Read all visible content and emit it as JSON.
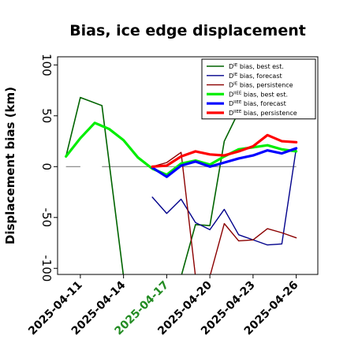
{
  "chart_data": {
    "type": "line",
    "title": "Bias, ice edge displacement",
    "ylabel": "Displacement bias (km)",
    "xlabel": "",
    "ylim": [
      -106,
      108
    ],
    "xlim": [
      "2025-04-09T10:00",
      "2025-04-27T12:00"
    ],
    "grid": false,
    "legend_position": "top-right",
    "yticks": [
      -100,
      -50,
      0,
      50,
      100
    ],
    "ytick_labels": [
      "-100",
      "-50",
      "0",
      "50",
      "100"
    ],
    "xticks": [
      {
        "date": "2025-04-11",
        "label": "2025-04-11",
        "color": "#000000"
      },
      {
        "date": "2025-04-14",
        "label": "2025-04-14",
        "color": "#000000"
      },
      {
        "date": "2025-04-17",
        "label": "2025-04-17",
        "color": "#228b22"
      },
      {
        "date": "2025-04-20",
        "label": "2025-04-20",
        "color": "#000000"
      },
      {
        "date": "2025-04-23",
        "label": "2025-04-23",
        "color": "#000000"
      },
      {
        "date": "2025-04-26",
        "label": "2025-04-26",
        "color": "#000000"
      }
    ],
    "zero_line": {
      "color": "#808080",
      "segments": [
        [
          {
            "x": "2025-04-10T00:00",
            "y": 0
          },
          {
            "x": "2025-04-11T00:00",
            "y": 0
          }
        ],
        [
          {
            "x": "2025-04-12T12:00",
            "y": 0
          },
          {
            "x": "2025-04-26T00:00",
            "y": 0
          }
        ]
      ]
    },
    "series": [
      {
        "name": "D^IE bias, best est.",
        "color": "#006400",
        "width": 1.6,
        "points": [
          {
            "x": "2025-04-10T00:00",
            "y": 10
          },
          {
            "x": "2025-04-11T00:00",
            "y": 68
          },
          {
            "x": "2025-04-12T12:00",
            "y": 60
          },
          {
            "x": "2025-04-14T00:00",
            "y": -108
          },
          null,
          {
            "x": "2025-04-18T00:00",
            "y": -108
          },
          {
            "x": "2025-04-19T00:00",
            "y": -57
          },
          {
            "x": "2025-04-20T00:00",
            "y": -58
          },
          {
            "x": "2025-04-21T00:00",
            "y": 25
          },
          {
            "x": "2025-04-22T00:00",
            "y": 54
          }
        ]
      },
      {
        "name": "D^IE bias, forecast",
        "color": "#00008b",
        "width": 1.4,
        "points": [
          {
            "x": "2025-04-16T00:00",
            "y": -30
          },
          {
            "x": "2025-04-17T00:00",
            "y": -46
          },
          {
            "x": "2025-04-18T00:00",
            "y": -32
          },
          {
            "x": "2025-04-19T00:00",
            "y": -55
          },
          {
            "x": "2025-04-20T00:00",
            "y": -62
          },
          {
            "x": "2025-04-21T00:00",
            "y": -42
          },
          {
            "x": "2025-04-22T00:00",
            "y": -67
          },
          {
            "x": "2025-04-23T00:00",
            "y": -72
          },
          {
            "x": "2025-04-24T00:00",
            "y": -77
          },
          {
            "x": "2025-04-25T00:00",
            "y": -76
          },
          {
            "x": "2025-04-26T00:00",
            "y": 18
          }
        ]
      },
      {
        "name": "D^IE bias, persistence",
        "color": "#8b0000",
        "width": 1.4,
        "points": [
          {
            "x": "2025-04-16T00:00",
            "y": 0
          },
          {
            "x": "2025-04-17T00:00",
            "y": 4
          },
          {
            "x": "2025-04-18T00:00",
            "y": 14
          },
          {
            "x": "2025-04-19T00:00",
            "y": -108
          },
          null,
          {
            "x": "2025-04-20T00:00",
            "y": -108
          },
          {
            "x": "2025-04-21T00:00",
            "y": -56
          },
          {
            "x": "2025-04-22T00:00",
            "y": -73
          },
          {
            "x": "2025-04-23T00:00",
            "y": -72
          },
          {
            "x": "2025-04-24T00:00",
            "y": -61
          },
          {
            "x": "2025-04-25T00:00",
            "y": -65
          },
          {
            "x": "2025-04-26T00:00",
            "y": -70
          }
        ]
      },
      {
        "name": "D^IIEE bias, best est.",
        "color": "#00ee00",
        "width": 3.2,
        "points": [
          {
            "x": "2025-04-10T00:00",
            "y": 10
          },
          {
            "x": "2025-04-11T00:00",
            "y": 28
          },
          {
            "x": "2025-04-12T00:00",
            "y": 43
          },
          {
            "x": "2025-04-13T00:00",
            "y": 37
          },
          {
            "x": "2025-04-14T00:00",
            "y": 26
          },
          {
            "x": "2025-04-15T00:00",
            "y": 9
          },
          {
            "x": "2025-04-16T00:00",
            "y": -2
          },
          {
            "x": "2025-04-17T00:00",
            "y": -8
          },
          {
            "x": "2025-04-18T00:00",
            "y": 3
          },
          {
            "x": "2025-04-19T00:00",
            "y": 6
          },
          {
            "x": "2025-04-20T00:00",
            "y": 2
          },
          {
            "x": "2025-04-21T00:00",
            "y": 10
          },
          {
            "x": "2025-04-22T00:00",
            "y": 17
          },
          {
            "x": "2025-04-23T00:00",
            "y": 19
          },
          {
            "x": "2025-04-24T00:00",
            "y": 21
          },
          {
            "x": "2025-04-25T00:00",
            "y": 17
          },
          {
            "x": "2025-04-26T00:00",
            "y": 15
          }
        ]
      },
      {
        "name": "D^IIEE bias, forecast",
        "color": "#0000ff",
        "width": 3.2,
        "points": [
          {
            "x": "2025-04-16T00:00",
            "y": -1
          },
          {
            "x": "2025-04-17T00:00",
            "y": -10
          },
          {
            "x": "2025-04-18T00:00",
            "y": 1
          },
          {
            "x": "2025-04-19T00:00",
            "y": 5
          },
          {
            "x": "2025-04-20T00:00",
            "y": 0
          },
          {
            "x": "2025-04-21T00:00",
            "y": 4
          },
          {
            "x": "2025-04-22T00:00",
            "y": 8
          },
          {
            "x": "2025-04-23T00:00",
            "y": 11
          },
          {
            "x": "2025-04-24T00:00",
            "y": 16
          },
          {
            "x": "2025-04-25T00:00",
            "y": 13
          },
          {
            "x": "2025-04-26T00:00",
            "y": 18
          }
        ]
      },
      {
        "name": "D^IIEE bias, persistence",
        "color": "#ff0000",
        "width": 3.2,
        "points": [
          {
            "x": "2025-04-16T00:00",
            "y": 0
          },
          {
            "x": "2025-04-17T00:00",
            "y": 1
          },
          {
            "x": "2025-04-18T00:00",
            "y": 10
          },
          {
            "x": "2025-04-19T00:00",
            "y": 15
          },
          {
            "x": "2025-04-20T00:00",
            "y": 12
          },
          {
            "x": "2025-04-21T00:00",
            "y": 11
          },
          {
            "x": "2025-04-22T00:00",
            "y": 15
          },
          {
            "x": "2025-04-23T00:00",
            "y": 20
          },
          {
            "x": "2025-04-24T00:00",
            "y": 31
          },
          {
            "x": "2025-04-25T00:00",
            "y": 25
          },
          {
            "x": "2025-04-26T00:00",
            "y": 24
          }
        ]
      }
    ],
    "legend": [
      {
        "base": "D",
        "sup": "IE",
        "rest": " bias, best est.",
        "color": "#006400",
        "width": 1.6
      },
      {
        "base": "D",
        "sup": "IE",
        "rest": " bias, forecast",
        "color": "#00008b",
        "width": 1.4
      },
      {
        "base": "D",
        "sup": "IE",
        "rest": " bias, persistence",
        "color": "#8b0000",
        "width": 1.4
      },
      {
        "base": "D",
        "sup": "IIEE",
        "rest": " bias, best est.",
        "color": "#00ee00",
        "width": 3.2
      },
      {
        "base": "D",
        "sup": "IIEE",
        "rest": " bias, forecast",
        "color": "#0000ff",
        "width": 3.2
      },
      {
        "base": "D",
        "sup": "IIEE",
        "rest": " bias, persistence",
        "color": "#ff0000",
        "width": 3.2
      }
    ]
  }
}
